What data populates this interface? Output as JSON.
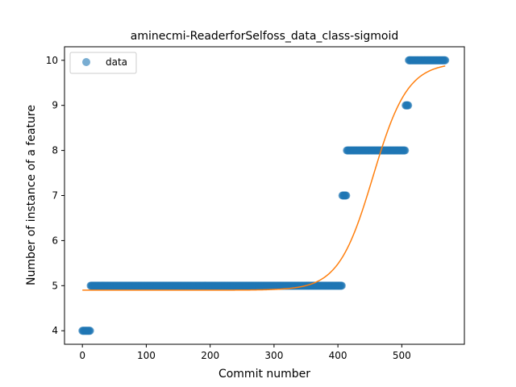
{
  "chart_data": {
    "type": "scatter",
    "title": "aminecmi-ReaderforSelfoss_data_class-sigmoid",
    "xlabel": "Commit number",
    "ylabel": "Number of instance of a feature",
    "xlim": [
      -28,
      598
    ],
    "ylim": [
      3.7,
      10.3
    ],
    "x_ticks": [
      0,
      100,
      200,
      300,
      400,
      500
    ],
    "y_ticks": [
      4,
      5,
      6,
      7,
      8,
      9,
      10
    ],
    "grid": false,
    "legend_position": "top-left",
    "colors": {
      "data": "#1f77b4",
      "fit": "#ff7f0e"
    },
    "series": [
      {
        "name": "data",
        "kind": "points",
        "segments": [
          {
            "x_start": 0,
            "x_end": 12,
            "y": 4
          },
          {
            "x_start": 13,
            "x_end": 406,
            "y": 5
          },
          {
            "x_start": 407,
            "x_end": 413,
            "y": 7
          },
          {
            "x_start": 414,
            "x_end": 505,
            "y": 8
          },
          {
            "x_start": 506,
            "x_end": 510,
            "y": 9
          },
          {
            "x_start": 511,
            "x_end": 568,
            "y": 10
          }
        ]
      },
      {
        "kind": "line",
        "model": "sigmoid",
        "params": {
          "lower": 4.9,
          "upper": 9.95,
          "midpoint": 455,
          "slope": 0.037
        },
        "x_range": [
          0,
          568
        ]
      }
    ]
  }
}
